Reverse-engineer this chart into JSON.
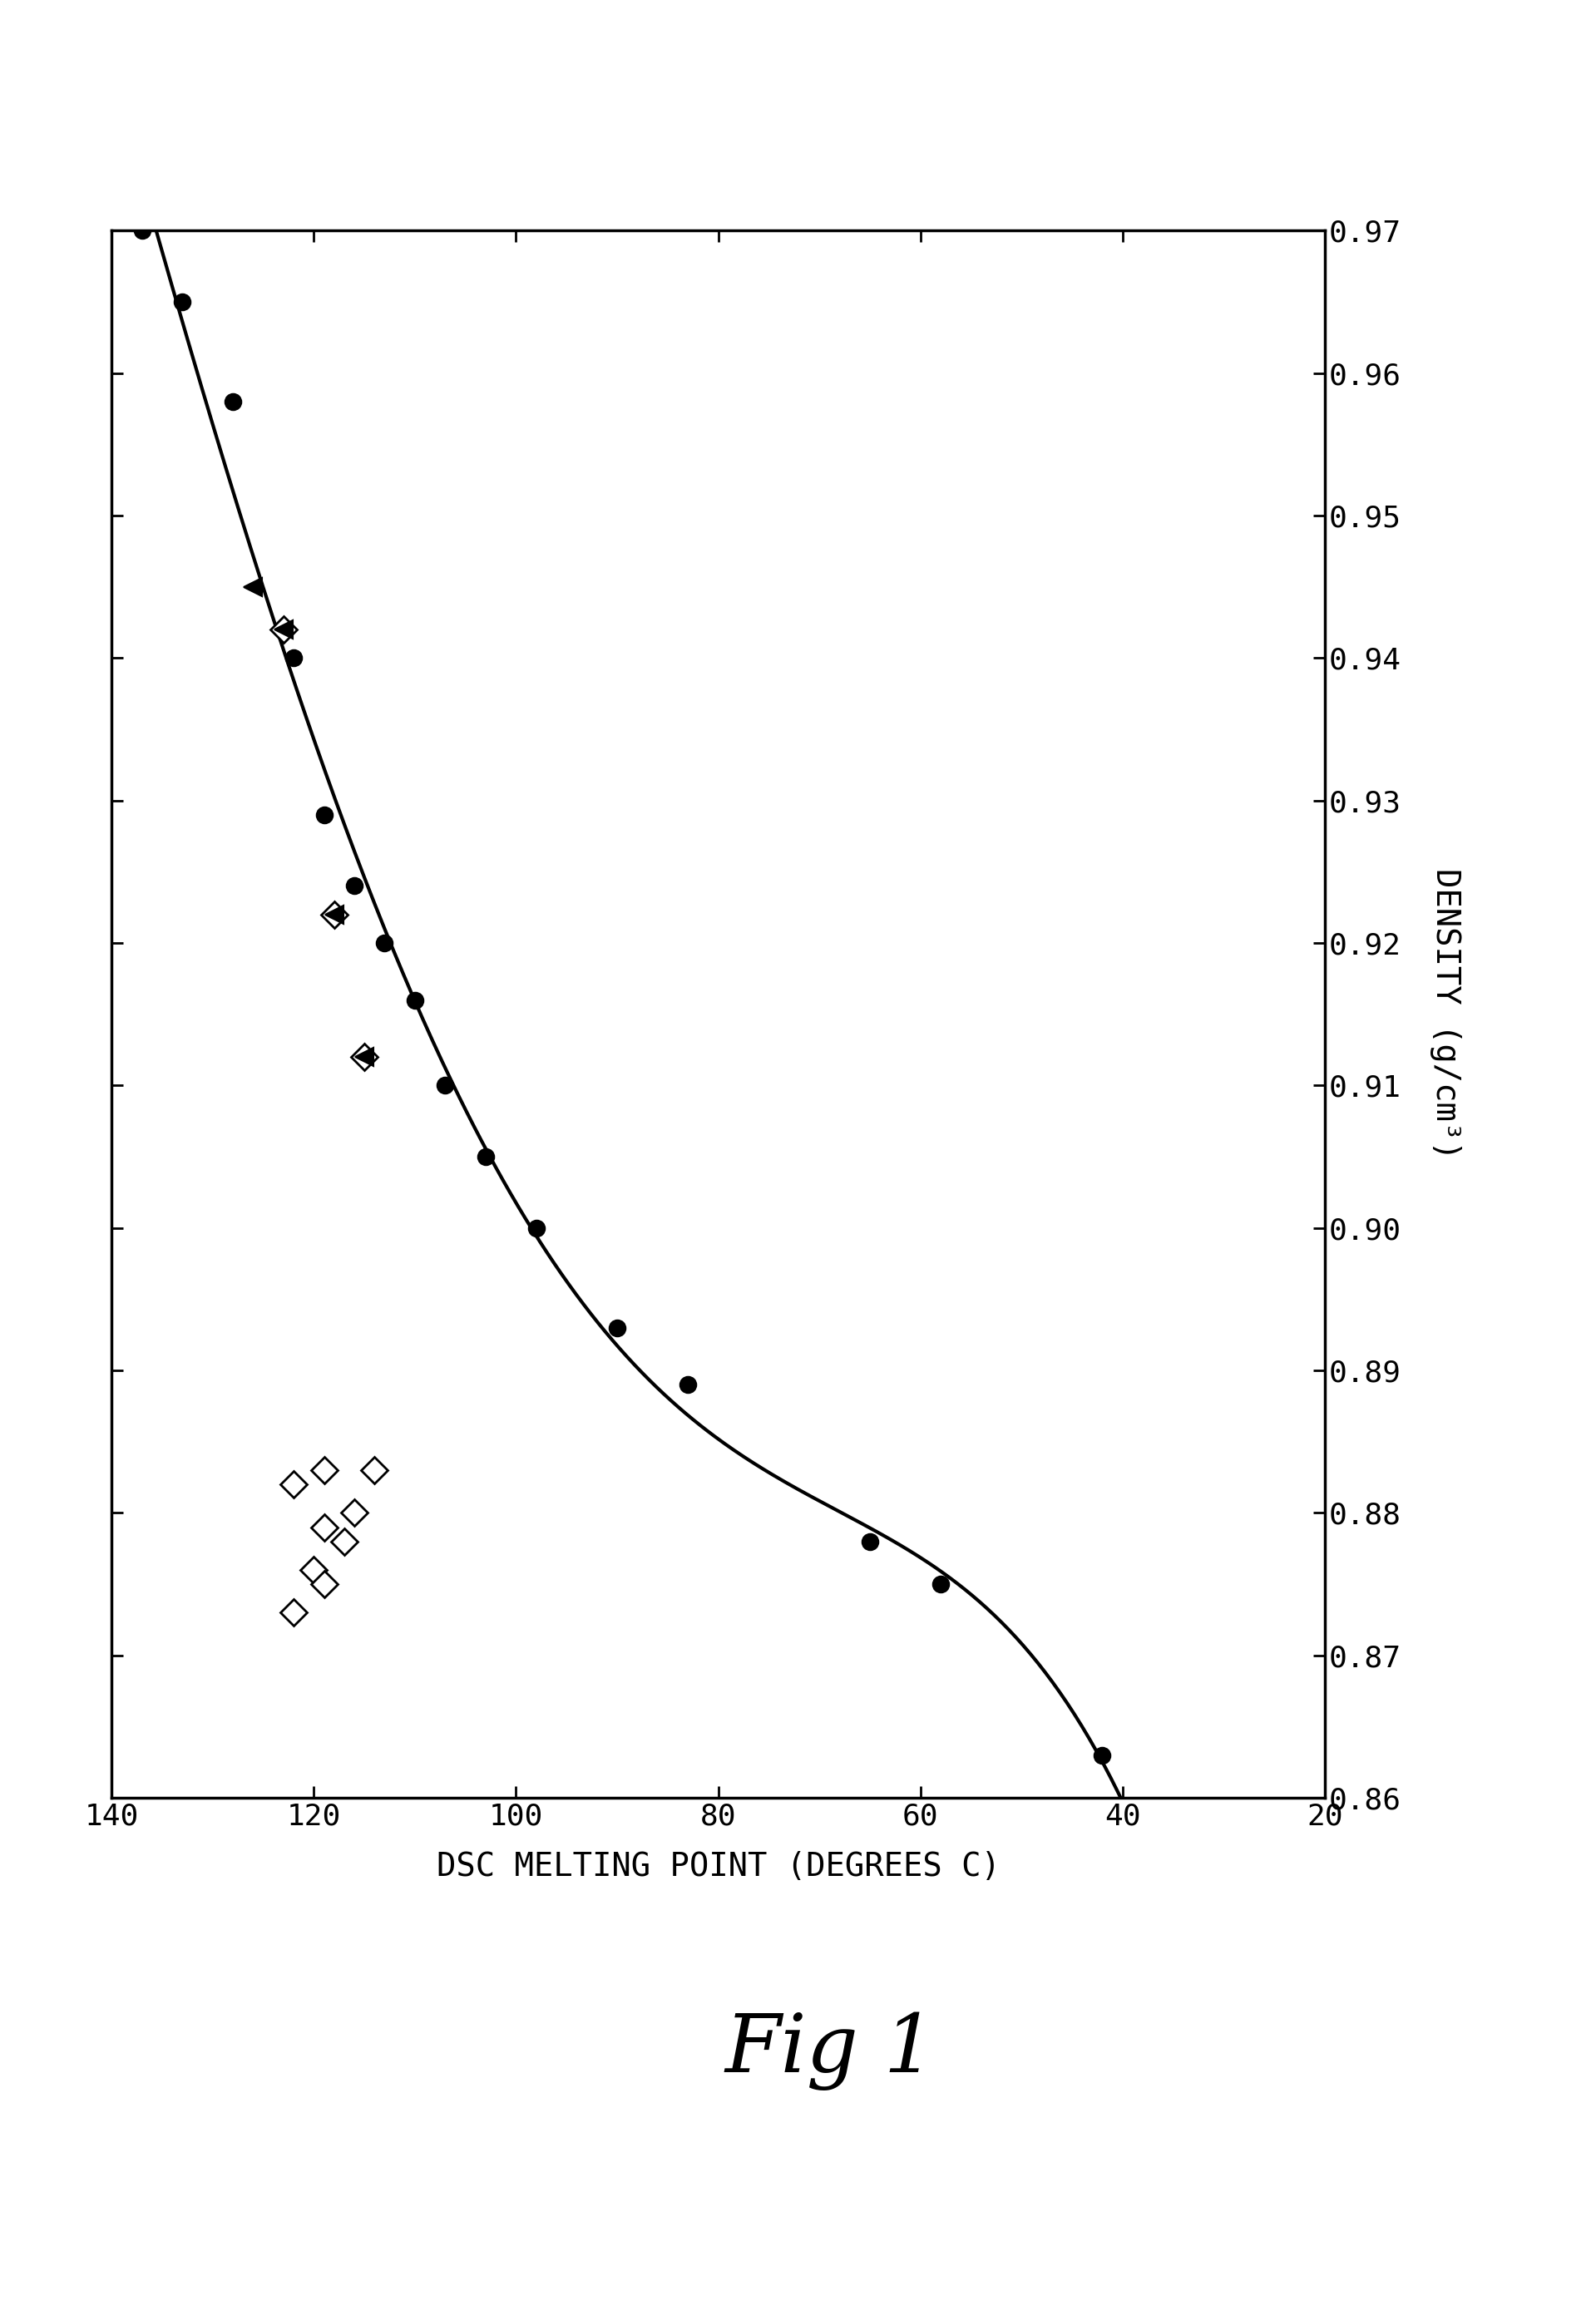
{
  "title": "Fig 1",
  "xlabel": "DSC MELTING POINT (DEGREES C)",
  "ylabel": "DENSITY (g/cm³)",
  "x_min": 20,
  "x_max": 140,
  "x_ticks": [
    20,
    40,
    60,
    80,
    100,
    120,
    140
  ],
  "y_min": 0.86,
  "y_max": 0.97,
  "y_ticks": [
    0.86,
    0.87,
    0.88,
    0.89,
    0.9,
    0.91,
    0.92,
    0.93,
    0.94,
    0.95,
    0.96,
    0.97
  ],
  "circle_points": [
    [
      137,
      0.97
    ],
    [
      133,
      0.965
    ],
    [
      128,
      0.958
    ],
    [
      122,
      0.94
    ],
    [
      119,
      0.929
    ],
    [
      116,
      0.924
    ],
    [
      113,
      0.92
    ],
    [
      110,
      0.916
    ],
    [
      107,
      0.91
    ],
    [
      103,
      0.905
    ],
    [
      98,
      0.9
    ],
    [
      90,
      0.893
    ],
    [
      83,
      0.889
    ],
    [
      65,
      0.878
    ],
    [
      58,
      0.875
    ],
    [
      42,
      0.863
    ]
  ],
  "filled_triangle_points": [
    [
      126,
      0.945
    ],
    [
      123,
      0.942
    ],
    [
      118,
      0.922
    ],
    [
      115,
      0.912
    ]
  ],
  "open_diamond_points_upper": [
    [
      123,
      0.942
    ],
    [
      118,
      0.922
    ],
    [
      115,
      0.912
    ]
  ],
  "open_diamond_points_lower": [
    [
      114,
      0.883
    ],
    [
      119,
      0.883
    ],
    [
      122,
      0.882
    ],
    [
      116,
      0.88
    ],
    [
      119,
      0.879
    ],
    [
      117,
      0.878
    ],
    [
      120,
      0.876
    ],
    [
      119,
      0.875
    ],
    [
      122,
      0.873
    ]
  ],
  "curve_color": "#000000",
  "marker_color": "#000000",
  "background_color": "#ffffff",
  "fig_width": 19.19,
  "fig_height": 27.72
}
